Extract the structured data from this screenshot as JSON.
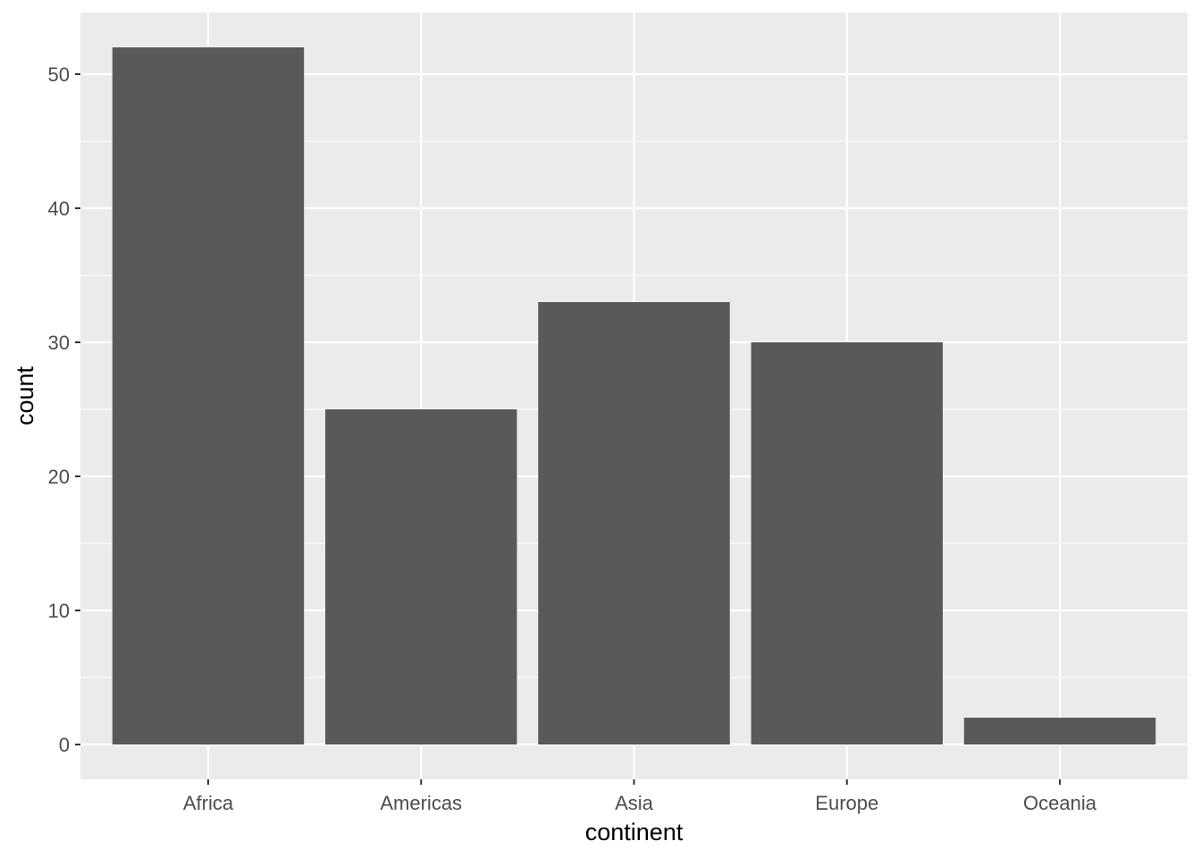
{
  "chart_data": {
    "type": "bar",
    "title": "",
    "xlabel": "continent",
    "ylabel": "count",
    "categories": [
      "Africa",
      "Americas",
      "Asia",
      "Europe",
      "Oceania"
    ],
    "values": [
      52,
      25,
      33,
      30,
      2
    ],
    "ylim": [
      -2.6,
      54.6
    ],
    "yticks": [
      0,
      10,
      20,
      30,
      40,
      50
    ],
    "grid": true,
    "colors": {
      "bar": "#595959",
      "panel": "#EBEBEB",
      "grid": "#FFFFFF"
    }
  }
}
